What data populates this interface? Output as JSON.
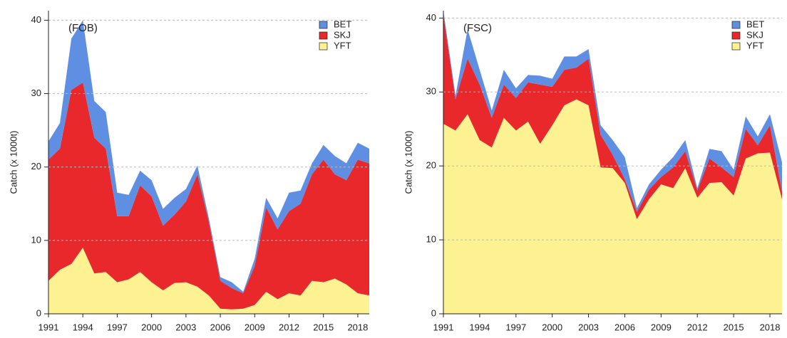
{
  "chart_data": [
    {
      "type": "stacked_area",
      "annotation": "(FOB)",
      "y_label": "Catch (x 1000t)",
      "x": [
        1991,
        1992,
        1993,
        1994,
        1995,
        1996,
        1997,
        1998,
        1999,
        2000,
        2001,
        2002,
        2003,
        2004,
        2005,
        2006,
        2007,
        2008,
        2009,
        2010,
        2011,
        2012,
        2013,
        2014,
        2015,
        2016,
        2017,
        2018,
        2019
      ],
      "xlim": [
        1991,
        2019
      ],
      "xticks": [
        1991,
        1994,
        1997,
        2000,
        2003,
        2006,
        2009,
        2012,
        2015,
        2018
      ],
      "ylim": [
        0,
        41.3
      ],
      "yticks": [
        0,
        10,
        20,
        30,
        40
      ],
      "grid": true,
      "legend": "upper right",
      "series": [
        {
          "name": "YFT",
          "color": "#fcf292",
          "values": [
            4.5,
            6,
            6.8,
            9,
            5.5,
            5.7,
            4.3,
            4.7,
            5.7,
            4.3,
            3.2,
            4.2,
            4.3,
            3.7,
            2.5,
            0.7,
            0.6,
            0.7,
            1.2,
            3,
            2,
            2.8,
            2.5,
            4.5,
            4.3,
            4.8,
            4,
            2.8,
            2.5
          ]
        },
        {
          "name": "SKJ",
          "color": "#e8282b",
          "values": [
            16.5,
            16.5,
            23.7,
            22.5,
            18.5,
            16.8,
            9,
            8.6,
            11.8,
            11.7,
            8.8,
            9.3,
            11,
            15.3,
            10,
            3.8,
            2.9,
            2.1,
            5.3,
            11.5,
            9.5,
            11.2,
            12.5,
            14.5,
            16.7,
            14.2,
            14.2,
            18.2,
            18
          ]
        },
        {
          "name": "BET",
          "color": "#5f8fe3",
          "values": [
            2.5,
            3.5,
            7,
            8.5,
            5,
            5,
            3.2,
            2.9,
            2,
            2.2,
            2.3,
            2.3,
            1.7,
            1.2,
            0.5,
            0.5,
            0.8,
            0.2,
            1,
            1.3,
            1.5,
            2.5,
            1.8,
            1.5,
            2,
            2.5,
            2.3,
            2.3,
            2
          ]
        }
      ]
    },
    {
      "type": "stacked_area",
      "annotation": "(FSC)",
      "y_label": "Catch (x 1000t)",
      "x": [
        1991,
        1992,
        1993,
        1994,
        1995,
        1996,
        1997,
        1998,
        1999,
        2000,
        2001,
        2002,
        2003,
        2004,
        2005,
        2006,
        2007,
        2008,
        2009,
        2010,
        2011,
        2012,
        2013,
        2014,
        2015,
        2016,
        2017,
        2018,
        2019
      ],
      "xlim": [
        1991,
        2019
      ],
      "xticks": [
        1991,
        1994,
        1997,
        2000,
        2003,
        2006,
        2009,
        2012,
        2015,
        2018
      ],
      "ylim": [
        0,
        41
      ],
      "yticks": [
        0,
        10,
        20,
        30,
        40
      ],
      "grid": true,
      "legend": "upper right",
      "series": [
        {
          "name": "YFT",
          "color": "#fcf292",
          "values": [
            25.7,
            24.8,
            27,
            23.5,
            22.5,
            26.5,
            24.8,
            26,
            23,
            25.5,
            28.2,
            29,
            28.2,
            19.8,
            19.7,
            17.7,
            12.8,
            15.5,
            17.5,
            17,
            19.7,
            15.7,
            17.7,
            17.8,
            16,
            21,
            21.7,
            21.8,
            15.5
          ]
        },
        {
          "name": "SKJ",
          "color": "#e8282b",
          "values": [
            14.8,
            4.2,
            7.5,
            7.5,
            4,
            4.5,
            4.4,
            5.3,
            8,
            5.2,
            4.8,
            4.3,
            6.3,
            4.4,
            1.8,
            0.5,
            1,
            1.3,
            1,
            2.8,
            2.3,
            1,
            3.3,
            2,
            2.5,
            4,
            1.1,
            3.7,
            1
          ]
        },
        {
          "name": "BET",
          "color": "#5f8fe3",
          "values": [
            0.5,
            0.5,
            4,
            2,
            1,
            2,
            1.3,
            1,
            1.2,
            1.1,
            1.8,
            1.5,
            1.3,
            1.3,
            2,
            3,
            0.5,
            0.7,
            1,
            1.4,
            1.5,
            0.3,
            1.3,
            2.2,
            1,
            1.7,
            1.2,
            1.5,
            4
          ]
        }
      ]
    }
  ]
}
